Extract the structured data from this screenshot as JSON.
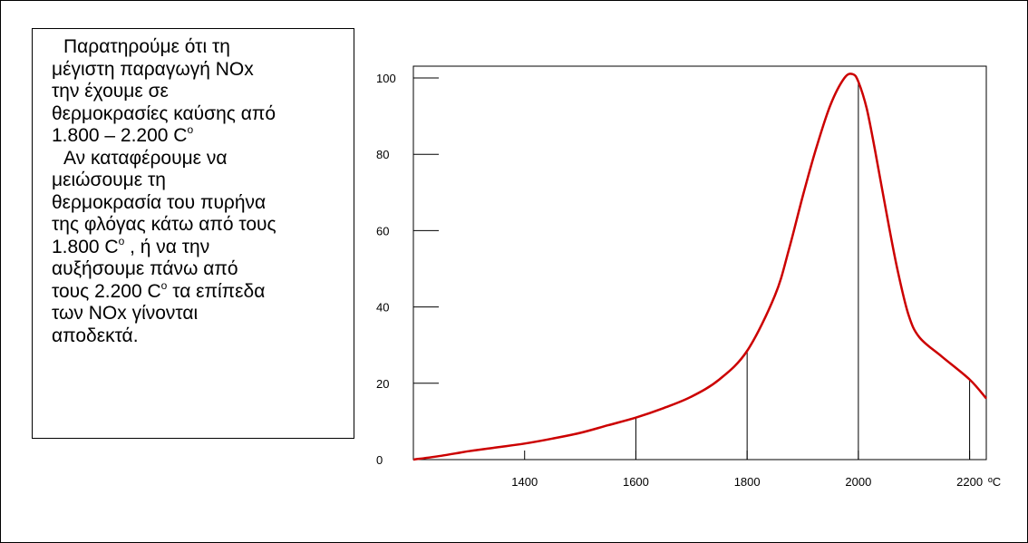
{
  "note": {
    "paragraph1": {
      "line1": "Παρατηρούμε ότι τη",
      "line2": "μέγιστη παραγωγή ΝΟx",
      "line3": "την έχουμε σε",
      "line4": "θερμοκρασίες καύσης από",
      "line5": "1.800 – 2.200 C",
      "line5_sup": "o"
    },
    "paragraph2": {
      "line1": "Αν καταφέρουμε να",
      "line2": "μειώσουμε τη",
      "line3": "θερμοκρασία του πυρήνα",
      "line4": "της φλόγας κάτω από τους",
      "line5_a": "1.800  C",
      "line5_sup": "o",
      "line5_b": " , ή να την",
      "line6": "αυξήσουμε πάνω από",
      "line7_a": "τους 2.200  C",
      "line7_sup": "o",
      "line7_b": " τα επίπεδα",
      "line8": "των ΝΟx γίνονται",
      "line9": "αποδεκτά."
    }
  },
  "chart_data": {
    "type": "line",
    "title": "",
    "xlabel": "",
    "ylabel": "",
    "x_unit_label": "ºC",
    "xlim": [
      1200,
      2230
    ],
    "ylim": [
      0,
      104
    ],
    "x_ticks": [
      1400,
      1600,
      1800,
      2000,
      2200
    ],
    "x_tick_labels": [
      "1400",
      "1600",
      "1800",
      "2000",
      "2200"
    ],
    "y_ticks": [
      0,
      20,
      40,
      60,
      80,
      100
    ],
    "y_tick_labels": [
      "0",
      "20",
      "40",
      "60",
      "80",
      "100"
    ],
    "grid": false,
    "series": [
      {
        "color": "#cc0000",
        "x": [
          1200,
          1250,
          1300,
          1350,
          1400,
          1450,
          1500,
          1550,
          1600,
          1650,
          1700,
          1750,
          1800,
          1850,
          1875,
          1900,
          1925,
          1950,
          1975,
          1990,
          2000,
          2015,
          2030,
          2050,
          2070,
          2090,
          2110,
          2150,
          2200,
          2230
        ],
        "y": [
          0,
          1,
          2.2,
          3.2,
          4.2,
          5.5,
          7,
          9,
          11,
          13.5,
          16.5,
          21,
          28.5,
          43,
          55,
          69,
          82,
          93,
          100,
          101,
          99,
          92,
          81,
          65,
          50,
          38,
          32,
          27,
          21,
          16
        ]
      }
    ],
    "drop_lines": [
      {
        "x": 1600,
        "y": 11
      },
      {
        "x": 1800,
        "y": 28.5
      },
      {
        "x": 2000,
        "y": 99
      },
      {
        "x": 2200,
        "y": 21
      }
    ]
  }
}
